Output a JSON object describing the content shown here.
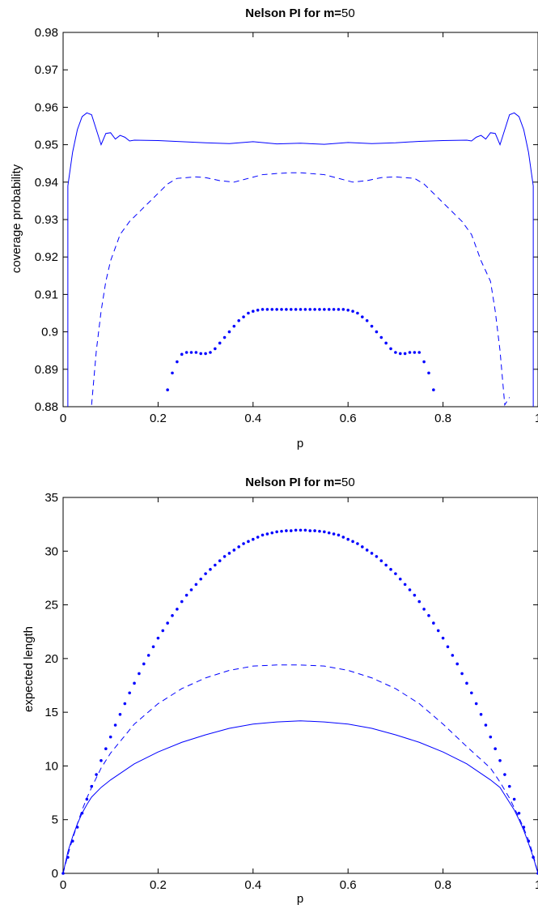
{
  "chart_data": [
    {
      "type": "line",
      "title": {
        "bold": "Nelson PI for  m=",
        "rest": "50"
      },
      "xlabel": "p",
      "ylabel": "coverage probability",
      "xlim": [
        0,
        1
      ],
      "ylim": [
        0.88,
        0.98
      ],
      "xticks": [
        0,
        0.2,
        0.4,
        0.6,
        0.8,
        1
      ],
      "xtick_labels": [
        "0",
        "0.2",
        "0.4",
        "0.6",
        "0.8",
        "1"
      ],
      "yticks": [
        0.88,
        0.89,
        0.9,
        0.91,
        0.92,
        0.93,
        0.94,
        0.95,
        0.96,
        0.97,
        0.98
      ],
      "ytick_labels": [
        "0.88",
        "0.89",
        "0.9",
        "0.91",
        "0.92",
        "0.93",
        "0.94",
        "0.95",
        "0.96",
        "0.97",
        "0.98"
      ],
      "grid": false,
      "color": "#0000ff",
      "series": [
        {
          "style": "solid",
          "x": [
            0.01,
            0.02,
            0.03,
            0.04,
            0.05,
            0.06,
            0.07,
            0.08,
            0.09,
            0.1,
            0.11,
            0.12,
            0.13,
            0.14,
            0.15,
            0.2,
            0.25,
            0.3,
            0.35,
            0.4,
            0.45,
            0.5,
            0.55,
            0.6,
            0.65,
            0.7,
            0.75,
            0.8,
            0.85,
            0.86,
            0.87,
            0.88,
            0.89,
            0.9,
            0.91,
            0.92,
            0.93,
            0.94,
            0.95,
            0.96,
            0.97,
            0.98,
            0.99
          ],
          "y": [
            0.939,
            0.948,
            0.954,
            0.9575,
            0.9585,
            0.958,
            0.954,
            0.95,
            0.953,
            0.9532,
            0.9515,
            0.9525,
            0.952,
            0.951,
            0.9512,
            0.9511,
            0.9508,
            0.9505,
            0.9503,
            0.9508,
            0.9502,
            0.9504,
            0.9501,
            0.9506,
            0.9503,
            0.9505,
            0.9509,
            0.9511,
            0.9512,
            0.951,
            0.952,
            0.9525,
            0.9515,
            0.9532,
            0.953,
            0.95,
            0.954,
            0.958,
            0.9585,
            0.9575,
            0.954,
            0.948,
            0.939
          ]
        },
        {
          "style": "dashed",
          "x": [
            0.06,
            0.07,
            0.08,
            0.09,
            0.1,
            0.12,
            0.14,
            0.16,
            0.18,
            0.2,
            0.22,
            0.24,
            0.26,
            0.28,
            0.3,
            0.33,
            0.36,
            0.39,
            0.42,
            0.45,
            0.48,
            0.5,
            0.52,
            0.55,
            0.58,
            0.61,
            0.64,
            0.67,
            0.7,
            0.72,
            0.74,
            0.76,
            0.78,
            0.8,
            0.82,
            0.84,
            0.86,
            0.88,
            0.9,
            0.91,
            0.92,
            0.93,
            0.94
          ],
          "y": [
            0.8805,
            0.895,
            0.9055,
            0.9135,
            0.919,
            0.926,
            0.9295,
            0.932,
            0.9345,
            0.937,
            0.9395,
            0.941,
            0.9412,
            0.9414,
            0.9412,
            0.9404,
            0.94,
            0.941,
            0.942,
            0.9423,
            0.9425,
            0.9425,
            0.9423,
            0.942,
            0.941,
            0.94,
            0.9404,
            0.9412,
            0.9414,
            0.9412,
            0.941,
            0.9395,
            0.937,
            0.9345,
            0.932,
            0.9295,
            0.926,
            0.919,
            0.9135,
            0.9055,
            0.895,
            0.8805,
            0.8825
          ]
        },
        {
          "style": "dotted",
          "x": [
            0.22,
            0.23,
            0.24,
            0.25,
            0.26,
            0.27,
            0.28,
            0.29,
            0.3,
            0.31,
            0.32,
            0.33,
            0.34,
            0.35,
            0.36,
            0.37,
            0.38,
            0.39,
            0.4,
            0.41,
            0.42,
            0.43,
            0.44,
            0.45,
            0.46,
            0.47,
            0.48,
            0.49,
            0.5,
            0.51,
            0.52,
            0.53,
            0.54,
            0.55,
            0.56,
            0.57,
            0.58,
            0.59,
            0.6,
            0.61,
            0.62,
            0.63,
            0.64,
            0.65,
            0.66,
            0.67,
            0.68,
            0.69,
            0.7,
            0.71,
            0.72,
            0.73,
            0.74,
            0.75,
            0.76,
            0.77,
            0.78
          ],
          "y": [
            0.8845,
            0.889,
            0.892,
            0.894,
            0.8945,
            0.8945,
            0.8945,
            0.8942,
            0.8942,
            0.8945,
            0.8955,
            0.897,
            0.8985,
            0.9,
            0.9015,
            0.903,
            0.904,
            0.905,
            0.9055,
            0.9058,
            0.906,
            0.906,
            0.906,
            0.906,
            0.906,
            0.906,
            0.906,
            0.906,
            0.906,
            0.906,
            0.906,
            0.906,
            0.906,
            0.906,
            0.906,
            0.906,
            0.906,
            0.906,
            0.9058,
            0.9055,
            0.905,
            0.904,
            0.903,
            0.9015,
            0.9,
            0.8985,
            0.897,
            0.8955,
            0.8945,
            0.8942,
            0.8942,
            0.8945,
            0.8945,
            0.8945,
            0.892,
            0.889,
            0.8845
          ]
        }
      ]
    },
    {
      "type": "line",
      "title": {
        "bold": "Nelson PI for  m=",
        "rest": "50"
      },
      "xlabel": "p",
      "ylabel": "expected length",
      "xlim": [
        0,
        1
      ],
      "ylim": [
        0,
        35
      ],
      "xticks": [
        0,
        0.2,
        0.4,
        0.6,
        0.8,
        1
      ],
      "xtick_labels": [
        "0",
        "0.2",
        "0.4",
        "0.6",
        "0.8",
        "1"
      ],
      "yticks": [
        0,
        5,
        10,
        15,
        20,
        25,
        30,
        35
      ],
      "ytick_labels": [
        "0",
        "5",
        "10",
        "15",
        "20",
        "25",
        "30",
        "35"
      ],
      "grid": false,
      "color": "#0000ff",
      "series": [
        {
          "style": "solid",
          "x": [
            0,
            0.01,
            0.02,
            0.03,
            0.04,
            0.05,
            0.06,
            0.08,
            0.1,
            0.15,
            0.2,
            0.25,
            0.3,
            0.35,
            0.4,
            0.45,
            0.5,
            0.55,
            0.6,
            0.65,
            0.7,
            0.75,
            0.8,
            0.85,
            0.9,
            0.92,
            0.94,
            0.95,
            0.96,
            0.97,
            0.98,
            0.99,
            1.0
          ],
          "y": [
            0,
            2.0,
            3.4,
            4.6,
            5.6,
            6.4,
            7.1,
            8.0,
            8.7,
            10.2,
            11.3,
            12.2,
            12.9,
            13.5,
            13.9,
            14.1,
            14.2,
            14.1,
            13.9,
            13.5,
            12.9,
            12.2,
            11.3,
            10.2,
            8.7,
            8.0,
            6.6,
            5.9,
            5.0,
            4.0,
            2.8,
            1.5,
            0
          ]
        },
        {
          "style": "dashed",
          "x": [
            0,
            0.01,
            0.02,
            0.03,
            0.04,
            0.05,
            0.06,
            0.08,
            0.1,
            0.15,
            0.2,
            0.25,
            0.3,
            0.35,
            0.4,
            0.45,
            0.5,
            0.55,
            0.6,
            0.65,
            0.7,
            0.75,
            0.8,
            0.85,
            0.9,
            0.92,
            0.94,
            0.96,
            0.97,
            0.98,
            0.99,
            1.0
          ],
          "y": [
            0,
            1.7,
            3.2,
            4.6,
            5.9,
            7.0,
            8.0,
            9.8,
            11.2,
            13.9,
            15.8,
            17.2,
            18.2,
            18.9,
            19.3,
            19.4,
            19.4,
            19.3,
            18.9,
            18.2,
            17.2,
            15.8,
            13.9,
            11.8,
            9.8,
            8.5,
            7.0,
            5.2,
            4.2,
            3.1,
            1.7,
            0
          ]
        },
        {
          "style": "dotted",
          "x": [
            0,
            0.01,
            0.02,
            0.03,
            0.04,
            0.05,
            0.06,
            0.07,
            0.08,
            0.09,
            0.1,
            0.11,
            0.12,
            0.13,
            0.14,
            0.15,
            0.16,
            0.17,
            0.18,
            0.19,
            0.2,
            0.21,
            0.22,
            0.23,
            0.24,
            0.25,
            0.26,
            0.27,
            0.28,
            0.29,
            0.3,
            0.31,
            0.32,
            0.33,
            0.34,
            0.35,
            0.36,
            0.37,
            0.38,
            0.39,
            0.4,
            0.41,
            0.42,
            0.43,
            0.44,
            0.45,
            0.46,
            0.47,
            0.48,
            0.49,
            0.5,
            0.51,
            0.52,
            0.53,
            0.54,
            0.55,
            0.56,
            0.57,
            0.58,
            0.59,
            0.6,
            0.61,
            0.62,
            0.63,
            0.64,
            0.65,
            0.66,
            0.67,
            0.68,
            0.69,
            0.7,
            0.71,
            0.72,
            0.73,
            0.74,
            0.75,
            0.76,
            0.77,
            0.78,
            0.79,
            0.8,
            0.81,
            0.82,
            0.83,
            0.84,
            0.85,
            0.86,
            0.87,
            0.88,
            0.89,
            0.9,
            0.91,
            0.92,
            0.93,
            0.94,
            0.95,
            0.96,
            0.97,
            0.98,
            0.99,
            1.0
          ],
          "y": [
            0,
            1.5,
            3.0,
            4.3,
            5.6,
            6.9,
            8.1,
            9.2,
            10.5,
            11.6,
            12.7,
            13.8,
            14.8,
            15.8,
            16.8,
            17.7,
            18.6,
            19.5,
            20.3,
            21.1,
            21.9,
            22.6,
            23.3,
            24.0,
            24.6,
            25.3,
            25.9,
            26.4,
            26.9,
            27.4,
            27.9,
            28.3,
            28.7,
            29.1,
            29.5,
            29.8,
            30.1,
            30.4,
            30.7,
            30.9,
            31.1,
            31.3,
            31.5,
            31.6,
            31.7,
            31.8,
            31.85,
            31.9,
            31.9,
            31.95,
            31.95,
            31.95,
            31.9,
            31.9,
            31.85,
            31.8,
            31.7,
            31.6,
            31.5,
            31.3,
            31.1,
            30.9,
            30.7,
            30.4,
            30.1,
            29.8,
            29.5,
            29.1,
            28.7,
            28.3,
            27.9,
            27.4,
            26.9,
            26.4,
            25.9,
            25.3,
            24.6,
            24.0,
            23.3,
            22.6,
            21.9,
            21.1,
            20.3,
            19.5,
            18.6,
            17.7,
            16.8,
            15.8,
            14.8,
            13.8,
            12.7,
            11.6,
            10.5,
            9.2,
            8.1,
            6.9,
            5.6,
            4.3,
            3.0,
            1.5,
            0
          ]
        }
      ]
    }
  ]
}
